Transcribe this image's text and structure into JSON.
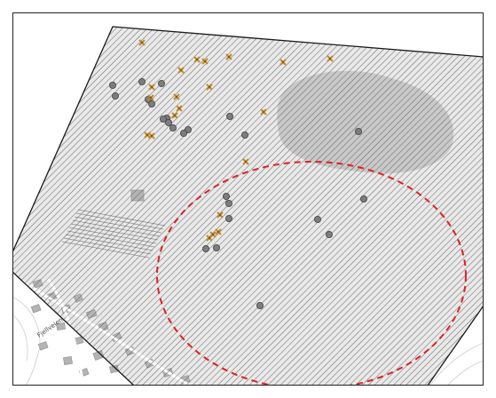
{
  "map": {
    "street_labels": [
      "Fjellveien"
    ],
    "colors": {
      "background": "#ffffff",
      "basemap_land": "#e9e9e9",
      "hatch": "#555555",
      "area_outline": "#1a1a1a",
      "forest_shade": "#c9c9c9",
      "building": "#b4b4b4",
      "circle_marker": "#7d7d7d",
      "cross_marker": "#c08a2a",
      "focus_ellipse": "#e02020"
    },
    "symbols": [
      "grey-circle-marker",
      "orange-cross-marker",
      "red-dashed-focus-ellipse",
      "diagonal-hatch-area"
    ],
    "circle_marker_count": 24,
    "cross_marker_count": 21
  }
}
